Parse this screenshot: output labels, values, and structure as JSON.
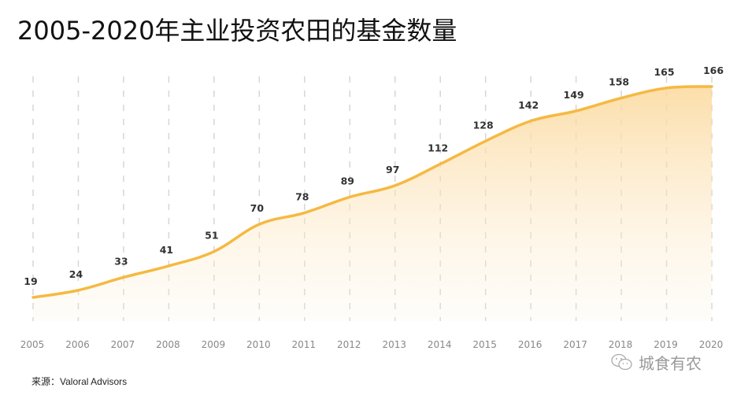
{
  "chart_data": {
    "type": "area",
    "title": "2005-2020年主业投资农田的基金数量",
    "categories": [
      "2005",
      "2006",
      "2007",
      "2008",
      "2009",
      "2010",
      "2011",
      "2012",
      "2013",
      "2014",
      "2015",
      "2016",
      "2017",
      "2018",
      "2019",
      "2020"
    ],
    "values": [
      19,
      24,
      33,
      41,
      51,
      70,
      78,
      89,
      97,
      112,
      128,
      142,
      149,
      158,
      165,
      166
    ],
    "xlabel": "",
    "ylabel": "",
    "ylim": [
      0,
      170
    ],
    "grid": "vertical-dashed",
    "colors": {
      "line": "#f5b942",
      "fill": "#fbd89a",
      "grid": "#d6d6d6",
      "label": "#333333",
      "tick": "#888888"
    }
  },
  "source": "来源：Valoral Advisors",
  "watermark": "城食有农"
}
